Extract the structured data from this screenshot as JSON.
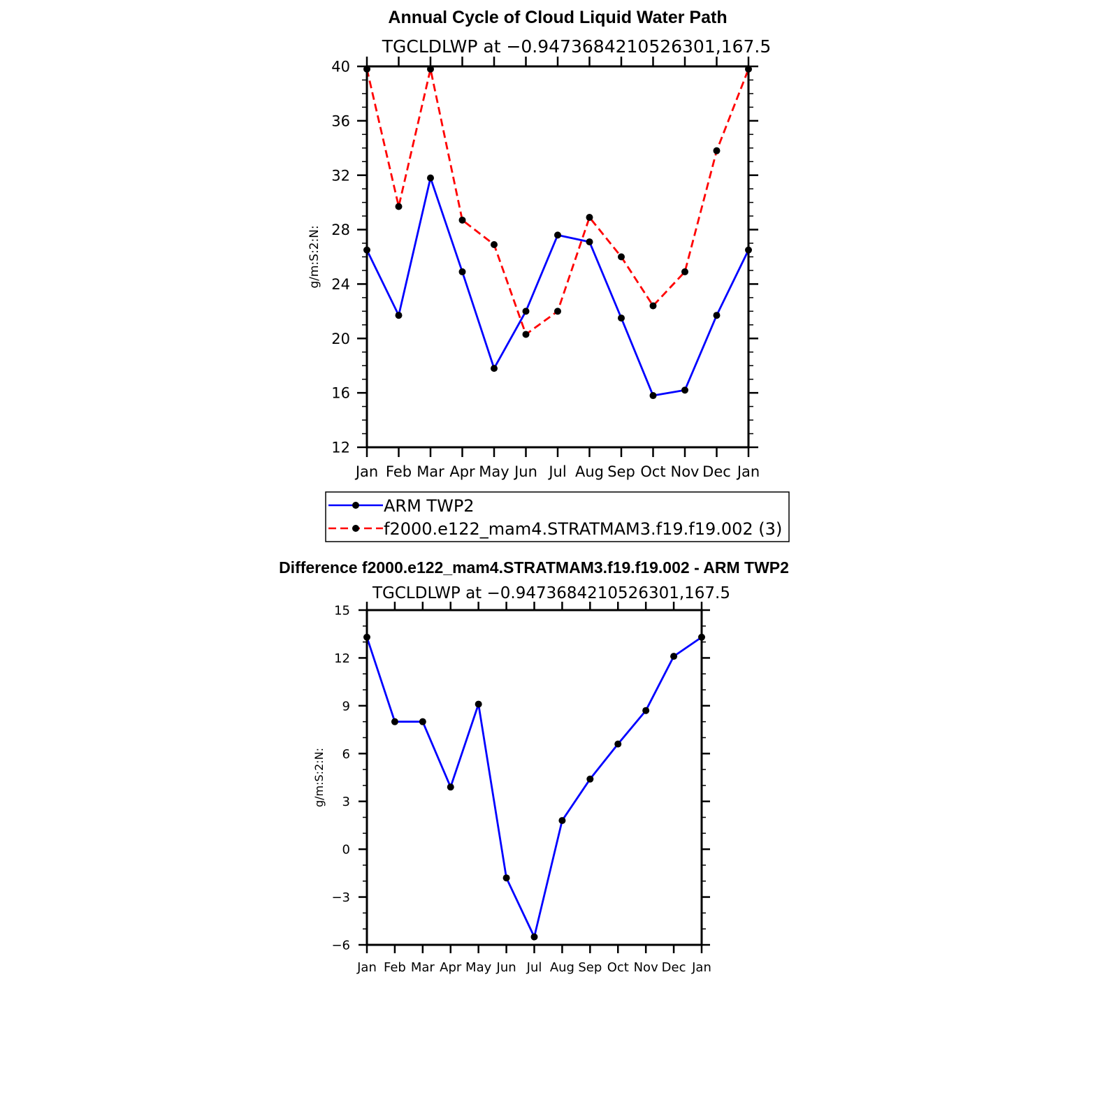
{
  "colors": {
    "series_obs": "#0000ff",
    "series_model": "#ff0000",
    "marker": "#000000",
    "axis": "#000000"
  },
  "chart_data": [
    {
      "type": "line",
      "title": "Annual Cycle of Cloud Liquid Water Path",
      "subtitle": "TGCLDLWP at −0.9473684210526301,167.5",
      "ylabel": "g/m:S:2:N:",
      "xlabel": "",
      "categories": [
        "Jan",
        "Feb",
        "Mar",
        "Apr",
        "May",
        "Jun",
        "Jul",
        "Aug",
        "Sep",
        "Oct",
        "Nov",
        "Dec",
        "Jan"
      ],
      "ylim": [
        12,
        40
      ],
      "yticks": [
        12,
        16,
        20,
        24,
        28,
        32,
        36,
        40
      ],
      "ytick_labels": [
        "12",
        "16",
        "20",
        "24",
        "28",
        "32",
        "36",
        "40"
      ],
      "grid": false,
      "legend_position": "below",
      "series": [
        {
          "name": "ARM TWP2",
          "style": "solid",
          "color": "#0000ff",
          "values": [
            26.5,
            21.7,
            31.8,
            24.9,
            17.8,
            22.0,
            27.6,
            27.1,
            21.5,
            15.8,
            16.2,
            21.7,
            26.5
          ]
        },
        {
          "name": "f2000.e122_mam4.STRATMAM3.f19.f19.002 (3)",
          "style": "dashed",
          "color": "#ff0000",
          "values": [
            39.8,
            29.7,
            39.8,
            28.7,
            26.9,
            20.3,
            22.0,
            28.9,
            26.0,
            22.4,
            24.9,
            33.8,
            39.8
          ]
        }
      ]
    },
    {
      "type": "line",
      "title": "Difference f2000.e122_mam4.STRATMAM3.f19.f19.002 - ARM TWP2",
      "subtitle": "TGCLDLWP at −0.9473684210526301,167.5",
      "ylabel": "g/m:S:2:N:",
      "xlabel": "",
      "categories": [
        "Jan",
        "Feb",
        "Mar",
        "Apr",
        "May",
        "Jun",
        "Jul",
        "Aug",
        "Sep",
        "Oct",
        "Nov",
        "Dec",
        "Jan"
      ],
      "ylim": [
        -6,
        15
      ],
      "yticks": [
        -6,
        -3,
        0,
        3,
        6,
        9,
        12,
        15
      ],
      "ytick_labels": [
        "−6",
        "−3",
        "0",
        "3",
        "6",
        "9",
        "12",
        "15"
      ],
      "grid": false,
      "series": [
        {
          "style": "solid",
          "color": "#0000ff",
          "values": [
            13.3,
            8.0,
            8.0,
            3.9,
            9.1,
            -1.8,
            -5.5,
            1.8,
            4.4,
            6.6,
            8.7,
            12.1,
            13.3
          ]
        }
      ]
    }
  ]
}
